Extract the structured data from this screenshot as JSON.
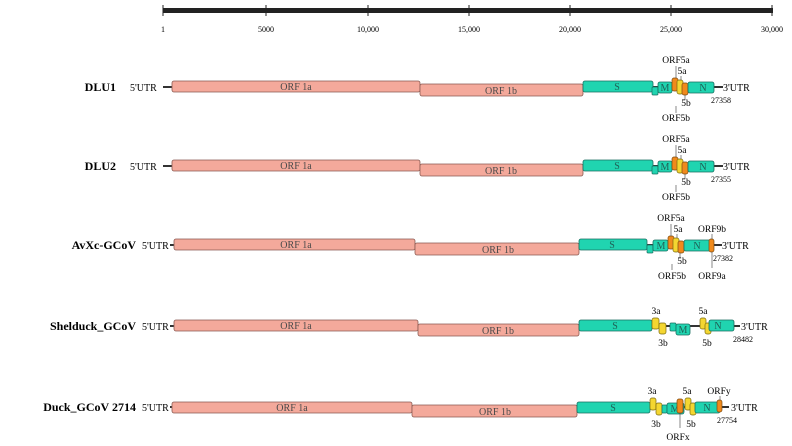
{
  "scale": {
    "ticks": [
      {
        "value": 1,
        "label": "1"
      },
      {
        "value": 5000,
        "label": "5000"
      },
      {
        "value": 10000,
        "label": "10,000"
      },
      {
        "value": 15000,
        "label": "15,000"
      },
      {
        "value": 20000,
        "label": "20,000"
      },
      {
        "value": 25000,
        "label": "25,000"
      },
      {
        "value": 30000,
        "label": "30,000"
      }
    ]
  },
  "colors": {
    "orf1": "#f4a99b",
    "structural": "#20d4b0",
    "accessory_yellow": "#f4d631",
    "accessory_orange": "#f08a1c",
    "backbone": "#333333"
  },
  "genomes": [
    {
      "name": "DLU1",
      "utr5": "5'UTR",
      "utr3": "3'UTR",
      "length": "27358",
      "genes": {
        "orf1a": "ORF 1a",
        "orf1b": "ORF 1b",
        "s": "S",
        "m": "M",
        "n": "N"
      },
      "labels": {
        "top1": "ORF5a",
        "top2": "5a",
        "bottom1": "5b",
        "bottom2": "ORF5b"
      }
    },
    {
      "name": "DLU2",
      "utr5": "5'UTR",
      "utr3": "3'UTR",
      "length": "27355",
      "genes": {
        "orf1a": "ORF 1a",
        "orf1b": "ORF 1b",
        "s": "S",
        "m": "M",
        "n": "N"
      },
      "labels": {
        "top1": "ORF5a",
        "top2": "5a",
        "bottom1": "5b",
        "bottom2": "ORF5b"
      }
    },
    {
      "name": "AvXc-GCoV",
      "utr5": "5'UTR",
      "utr3": "3'UTR",
      "length": "27382",
      "genes": {
        "orf1a": "ORF 1a",
        "orf1b": "ORF 1b",
        "s": "S",
        "m": "M",
        "n": "N"
      },
      "labels": {
        "top1": "ORF5a",
        "top2": "5a",
        "top3": "ORF9b",
        "bottom1": "5b",
        "bottom2": "ORF5b",
        "bottom3": "ORF9a"
      }
    },
    {
      "name": "Shelduck_GCoV",
      "utr5": "5'UTR",
      "utr3": "3'UTR",
      "length": "28482",
      "genes": {
        "orf1a": "ORF 1a",
        "orf1b": "ORF 1b",
        "s": "S",
        "m": "M",
        "n": "N"
      },
      "labels": {
        "top1": "3a",
        "bottom1": "3b",
        "top2": "5a",
        "bottom2": "5b"
      }
    },
    {
      "name": "Duck_GCoV 2714",
      "utr5": "5'UTR",
      "utr3": "3'UTR",
      "length": "27754",
      "genes": {
        "orf1a": "ORF 1a",
        "orf1b": "ORF 1b",
        "s": "S",
        "m": "M",
        "n": "N"
      },
      "labels": {
        "top1": "3a",
        "top2": "5a",
        "top3": "ORFy",
        "bottom1": "3b",
        "bottom2": "5b",
        "bottom3": "ORFx"
      }
    }
  ]
}
